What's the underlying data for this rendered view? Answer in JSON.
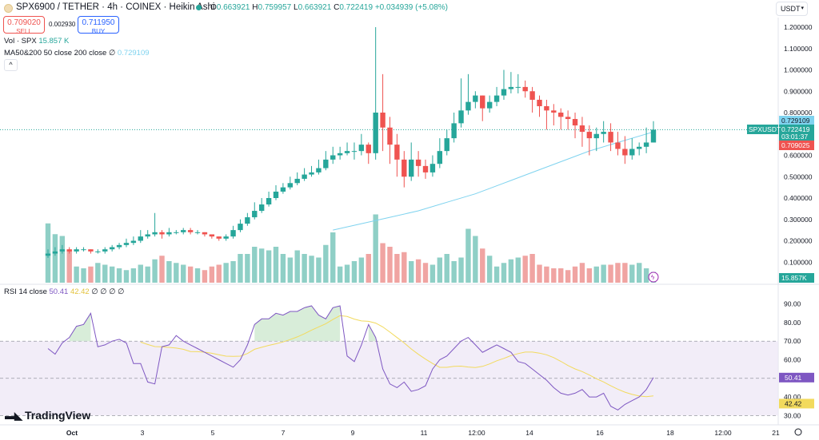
{
  "header": {
    "symbol_title": "SPX6900 / TETHER · 4h · COINEX · Heikin Ashi",
    "ohlc": {
      "o_label": "O",
      "o": "0.663921",
      "h_label": "H",
      "h": "0.759957",
      "l_label": "L",
      "l": "0.663921",
      "c_label": "C",
      "c": "0.722419",
      "change": "+0.034939 (+5.08%)"
    },
    "sell": {
      "value": "0.709020",
      "label": "SELL"
    },
    "spread": "0.002930",
    "buy": {
      "value": "0.711950",
      "label": "BUY"
    },
    "currency_select": "USDT",
    "collapse_glyph": "^",
    "vol_label": "Vol · SPX",
    "vol_value": "15.857 K",
    "ma_label": "MA50&200 50 close 200 close",
    "ma_null": "∅",
    "ma_value": "0.729109",
    "rsi_label": "RSI 14 close",
    "rsi_value": "50.41",
    "rsi_ma_value": "42.42",
    "rsi_nulls": "∅ ∅ ∅ ∅"
  },
  "colors": {
    "up": "#26a69a",
    "down": "#ef5350",
    "vol_up": "#8fcfc6",
    "vol_down": "#f0a4a2",
    "ma": "#7fd3ef",
    "rsi": "#7e57c2",
    "rsi_ma": "#f2da5d"
  },
  "branding": "TradingView",
  "chart_data": [
    {
      "type": "candlestick",
      "title": "SPX6900 / TETHER · 4h · COINEX · Heikin Ashi",
      "x_ticks": [
        "Oct",
        "3",
        "5",
        "7",
        "9",
        "11",
        "12:00",
        "14",
        "16",
        "18",
        "12:00",
        "21"
      ],
      "y_ticks": [
        "1.200000",
        "1.100000",
        "1.000000",
        "0.900000",
        "0.800000",
        "0.700000",
        "0.600000",
        "0.500000",
        "0.400000",
        "0.300000",
        "0.200000",
        "0.100000"
      ],
      "ylim": [
        0.0,
        1.2
      ],
      "price_labels": {
        "ma": "0.729109",
        "symbol": "SPXUSDT",
        "last": "0.722419",
        "countdown": "03:01:37",
        "bid": "0.709025",
        "volume": "15.857K"
      },
      "candles": [
        [
          0.13,
          0.14,
          0.16,
          0.12
        ],
        [
          0.14,
          0.15,
          0.17,
          0.13
        ],
        [
          0.15,
          0.16,
          0.18,
          0.14
        ],
        [
          0.16,
          0.15,
          0.17,
          0.14
        ],
        [
          0.15,
          0.16,
          0.17,
          0.14
        ],
        [
          0.16,
          0.16,
          0.17,
          0.15
        ],
        [
          0.16,
          0.15,
          0.16,
          0.14
        ],
        [
          0.15,
          0.15,
          0.16,
          0.14
        ],
        [
          0.15,
          0.16,
          0.17,
          0.14
        ],
        [
          0.16,
          0.17,
          0.18,
          0.15
        ],
        [
          0.17,
          0.18,
          0.19,
          0.16
        ],
        [
          0.18,
          0.19,
          0.21,
          0.17
        ],
        [
          0.19,
          0.2,
          0.22,
          0.18
        ],
        [
          0.2,
          0.22,
          0.25,
          0.19
        ],
        [
          0.22,
          0.23,
          0.25,
          0.21
        ],
        [
          0.23,
          0.24,
          0.33,
          0.22
        ],
        [
          0.24,
          0.23,
          0.25,
          0.21
        ],
        [
          0.23,
          0.24,
          0.26,
          0.22
        ],
        [
          0.24,
          0.24,
          0.25,
          0.23
        ],
        [
          0.24,
          0.25,
          0.26,
          0.23
        ],
        [
          0.25,
          0.24,
          0.26,
          0.23
        ],
        [
          0.24,
          0.24,
          0.25,
          0.23
        ],
        [
          0.24,
          0.23,
          0.24,
          0.22
        ],
        [
          0.23,
          0.22,
          0.23,
          0.21
        ],
        [
          0.22,
          0.21,
          0.22,
          0.2
        ],
        [
          0.21,
          0.22,
          0.23,
          0.2
        ],
        [
          0.22,
          0.25,
          0.27,
          0.21
        ],
        [
          0.25,
          0.28,
          0.3,
          0.24
        ],
        [
          0.28,
          0.31,
          0.33,
          0.27
        ],
        [
          0.31,
          0.34,
          0.38,
          0.3
        ],
        [
          0.34,
          0.37,
          0.4,
          0.33
        ],
        [
          0.37,
          0.4,
          0.43,
          0.36
        ],
        [
          0.4,
          0.43,
          0.46,
          0.39
        ],
        [
          0.43,
          0.45,
          0.47,
          0.42
        ],
        [
          0.45,
          0.47,
          0.5,
          0.44
        ],
        [
          0.47,
          0.49,
          0.52,
          0.46
        ],
        [
          0.49,
          0.51,
          0.54,
          0.48
        ],
        [
          0.51,
          0.52,
          0.55,
          0.5
        ],
        [
          0.52,
          0.54,
          0.58,
          0.51
        ],
        [
          0.54,
          0.58,
          0.62,
          0.53
        ],
        [
          0.58,
          0.6,
          0.64,
          0.56
        ],
        [
          0.6,
          0.61,
          0.64,
          0.58
        ],
        [
          0.61,
          0.62,
          0.66,
          0.6
        ],
        [
          0.62,
          0.62,
          0.66,
          0.58
        ],
        [
          0.62,
          0.65,
          0.7,
          0.6
        ],
        [
          0.65,
          0.61,
          0.66,
          0.56
        ],
        [
          0.61,
          0.8,
          1.2,
          0.58
        ],
        [
          0.8,
          0.73,
          0.98,
          0.62
        ],
        [
          0.73,
          0.65,
          0.78,
          0.56
        ],
        [
          0.65,
          0.58,
          0.7,
          0.5
        ],
        [
          0.58,
          0.5,
          0.62,
          0.45
        ],
        [
          0.5,
          0.58,
          0.66,
          0.48
        ],
        [
          0.58,
          0.55,
          0.62,
          0.5
        ],
        [
          0.55,
          0.52,
          0.58,
          0.49
        ],
        [
          0.52,
          0.56,
          0.6,
          0.5
        ],
        [
          0.56,
          0.62,
          0.68,
          0.54
        ],
        [
          0.62,
          0.68,
          0.72,
          0.6
        ],
        [
          0.68,
          0.75,
          0.8,
          0.66
        ],
        [
          0.75,
          0.81,
          0.96,
          0.73
        ],
        [
          0.81,
          0.85,
          0.98,
          0.79
        ],
        [
          0.85,
          0.88,
          0.9,
          0.82
        ],
        [
          0.88,
          0.82,
          0.88,
          0.76
        ],
        [
          0.82,
          0.85,
          0.88,
          0.8
        ],
        [
          0.85,
          0.88,
          0.92,
          0.83
        ],
        [
          0.88,
          0.91,
          1.0,
          0.86
        ],
        [
          0.91,
          0.92,
          0.99,
          0.89
        ],
        [
          0.92,
          0.92,
          0.98,
          0.89
        ],
        [
          0.92,
          0.9,
          0.95,
          0.87
        ],
        [
          0.9,
          0.86,
          0.92,
          0.8
        ],
        [
          0.86,
          0.83,
          0.88,
          0.78
        ],
        [
          0.83,
          0.81,
          0.86,
          0.72
        ],
        [
          0.81,
          0.8,
          0.84,
          0.74
        ],
        [
          0.8,
          0.78,
          0.82,
          0.72
        ],
        [
          0.78,
          0.77,
          0.81,
          0.72
        ],
        [
          0.77,
          0.74,
          0.8,
          0.68
        ],
        [
          0.74,
          0.71,
          0.78,
          0.64
        ],
        [
          0.71,
          0.68,
          0.74,
          0.6
        ],
        [
          0.68,
          0.7,
          0.73,
          0.62
        ],
        [
          0.7,
          0.71,
          0.76,
          0.66
        ],
        [
          0.71,
          0.66,
          0.75,
          0.62
        ],
        [
          0.66,
          0.63,
          0.71,
          0.6
        ],
        [
          0.63,
          0.6,
          0.69,
          0.56
        ],
        [
          0.6,
          0.63,
          0.68,
          0.58
        ],
        [
          0.63,
          0.64,
          0.66,
          0.6
        ],
        [
          0.64,
          0.66,
          0.73,
          0.61
        ],
        [
          0.66,
          0.72,
          0.76,
          0.66
        ]
      ],
      "ma50": [
        [
          40,
          0.25
        ],
        [
          44,
          0.28
        ],
        [
          48,
          0.31
        ],
        [
          52,
          0.34
        ],
        [
          56,
          0.38
        ],
        [
          60,
          0.42
        ],
        [
          64,
          0.47
        ],
        [
          68,
          0.52
        ],
        [
          72,
          0.57
        ],
        [
          76,
          0.62
        ],
        [
          80,
          0.66
        ],
        [
          84,
          0.7
        ],
        [
          85,
          0.71
        ]
      ]
    },
    {
      "type": "bar",
      "title": "Vol · SPX",
      "value": "15.857 K",
      "values": [
        33,
        27,
        26,
        18,
        9,
        8,
        9,
        11,
        10,
        9,
        8,
        7,
        8,
        10,
        9,
        13,
        15,
        12,
        11,
        10,
        9,
        8,
        7,
        9,
        10,
        11,
        12,
        16,
        16,
        20,
        19,
        18,
        20,
        16,
        14,
        18,
        16,
        15,
        14,
        21,
        28,
        9,
        10,
        12,
        14,
        16,
        38,
        22,
        20,
        16,
        17,
        12,
        13,
        11,
        10,
        14,
        16,
        12,
        14,
        30,
        26,
        19,
        15,
        9,
        11,
        13,
        14,
        15,
        16,
        10,
        9,
        8,
        8,
        7,
        9,
        11,
        8,
        9,
        10,
        10,
        11,
        11,
        10,
        11,
        8,
        6
      ]
    },
    {
      "type": "line",
      "title": "RSI 14 close",
      "ylim": [
        25,
        95
      ],
      "y_ticks": [
        "90.00",
        "80.00",
        "70.00",
        "60.00",
        "50.00",
        "40.00",
        "30.00"
      ],
      "bands": {
        "upper": 70,
        "middle": 50,
        "lower": 30
      },
      "series": [
        {
          "values": [
            66,
            63,
            69,
            72,
            78,
            79,
            85,
            67,
            68,
            70,
            71,
            69,
            58,
            58,
            48,
            47,
            67,
            68,
            73,
            70,
            68,
            66,
            64,
            62,
            60,
            58,
            56,
            60,
            68,
            79,
            82,
            82,
            85,
            84,
            86,
            86,
            88,
            89,
            84,
            82,
            88,
            89,
            62,
            59,
            68,
            79,
            72,
            55,
            47,
            45,
            48,
            43,
            44,
            46,
            55,
            60,
            62,
            66,
            70,
            72,
            68,
            64,
            66,
            68,
            66,
            64,
            59,
            58,
            55,
            52,
            49,
            45,
            42,
            41,
            42,
            44,
            40,
            40,
            42,
            35,
            33,
            36,
            38,
            40,
            44,
            50.41
          ]
        },
        {
          "values": [
            null,
            null,
            null,
            null,
            null,
            null,
            null,
            null,
            null,
            null,
            null,
            null,
            null,
            null,
            null,
            null,
            null,
            null,
            null,
            null,
            null,
            null,
            null,
            null,
            null,
            null,
            null,
            null,
            null,
            null,
            null,
            null,
            null,
            null,
            null,
            null,
            null,
            null,
            null,
            null,
            null,
            null,
            null,
            null,
            null,
            null,
            null,
            null,
            null,
            null,
            null,
            null,
            null,
            null,
            null,
            null,
            null,
            null,
            null,
            null,
            null,
            null,
            null,
            null,
            null,
            null,
            null,
            null,
            null,
            null,
            null,
            null,
            null,
            null,
            null,
            null,
            null,
            null,
            null,
            null,
            null,
            null,
            null,
            null,
            null,
            null
          ]
        }
      ],
      "labels": {
        "rsi": "50.41",
        "rsi_ma": "42.42"
      }
    }
  ]
}
